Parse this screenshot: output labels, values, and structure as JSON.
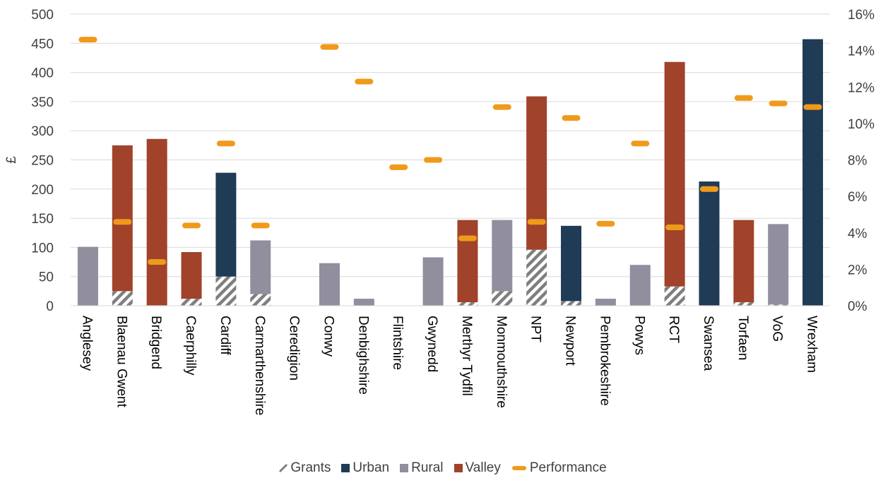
{
  "chart_data": {
    "type": "bar",
    "ylabel": "£",
    "y_left": {
      "range": [
        0,
        500
      ],
      "ticks": [
        "0",
        "50",
        "100",
        "150",
        "200",
        "250",
        "300",
        "350",
        "400",
        "450",
        "500"
      ]
    },
    "y_right": {
      "range": [
        0,
        0.16
      ],
      "ticks": [
        "0%",
        "2%",
        "4%",
        "6%",
        "8%",
        "10%",
        "12%",
        "14%",
        "16%"
      ]
    },
    "categories": [
      "Anglesey",
      "Blaenau Gwent",
      "Bridgend",
      "Caerphilly",
      "Cardiff",
      "Carmarthenshire",
      "Ceredigion",
      "Conwy",
      "Denbighshire",
      "Flintshire",
      "Gwynedd",
      "Merthyr Tydfil",
      "Monmouthshire",
      "NPT",
      "Newport",
      "Pembrokeshire",
      "Powys",
      "RCT",
      "Swansea",
      "Torfaen",
      "VoG",
      "Wrexham"
    ],
    "series": [
      {
        "name": "Grants",
        "color": "#7f7f7f",
        "pattern": "diagonal-hatch",
        "values": [
          0,
          25,
          0,
          12,
          50,
          20,
          0,
          0,
          0,
          0,
          0,
          6,
          25,
          96,
          8,
          0,
          0,
          33,
          0,
          6,
          2,
          0
        ]
      },
      {
        "name": "Urban",
        "color": "#1f3b55",
        "values": [
          0,
          0,
          0,
          0,
          178,
          0,
          0,
          0,
          0,
          0,
          0,
          0,
          0,
          0,
          129,
          0,
          0,
          0,
          213,
          0,
          0,
          457
        ]
      },
      {
        "name": "Rural",
        "color": "#918e9e",
        "values": [
          101,
          0,
          0,
          0,
          0,
          92,
          0,
          73,
          12,
          0,
          83,
          0,
          122,
          0,
          0,
          12,
          70,
          0,
          0,
          0,
          138,
          0
        ]
      },
      {
        "name": "Valley",
        "color": "#a0432a",
        "values": [
          0,
          250,
          286,
          80,
          0,
          0,
          0,
          0,
          0,
          0,
          0,
          141,
          0,
          263,
          0,
          0,
          0,
          385,
          0,
          141,
          0,
          0
        ]
      },
      {
        "name": "Performance",
        "color": "#f09a1b",
        "axis": "right",
        "marker": "dash",
        "values": [
          0.146,
          0.046,
          0.024,
          0.044,
          0.089,
          0.044,
          null,
          0.142,
          0.123,
          0.076,
          0.08,
          0.037,
          0.109,
          0.046,
          0.103,
          0.045,
          0.089,
          0.043,
          0.064,
          0.114,
          0.111,
          0.109
        ]
      }
    ],
    "grid": true,
    "legend_position": "bottom"
  }
}
